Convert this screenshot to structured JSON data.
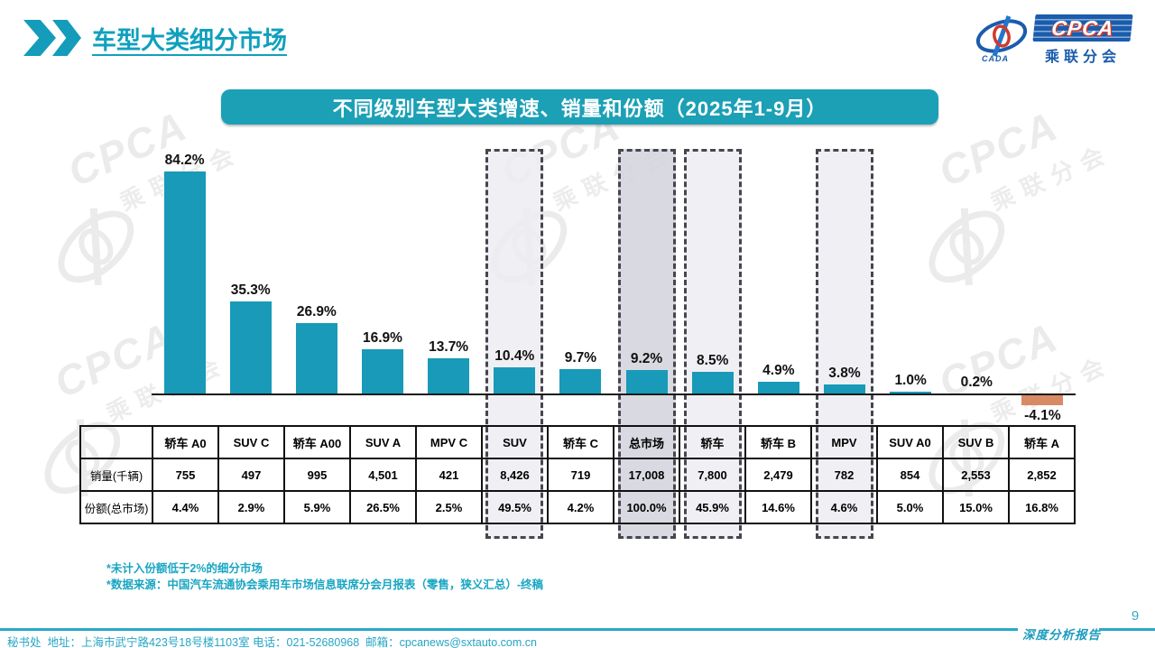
{
  "header": {
    "title": "车型大类细分市场"
  },
  "logo": {
    "cpca": "CPCA",
    "sub": "乘联分会",
    "cada": "CADA"
  },
  "banner": {
    "title": "不同级别车型大类增速、销量和份额（2025年1-9月）"
  },
  "chart_data": {
    "type": "bar",
    "title": "不同级别车型大类增速、销量和份额（2025年1-9月）",
    "categories": [
      "轿车 A0",
      "SUV C",
      "轿车 A00",
      "SUV A",
      "MPV C",
      "SUV",
      "轿车 C",
      "总市场",
      "轿车",
      "轿车 B",
      "MPV",
      "SUV A0",
      "SUV B",
      "轿车 A"
    ],
    "values": [
      84.2,
      35.3,
      26.9,
      16.9,
      13.7,
      10.4,
      9.7,
      9.2,
      8.5,
      4.9,
      3.8,
      1.0,
      0.2,
      -4.1
    ],
    "value_labels": [
      "84.2%",
      "35.3%",
      "26.9%",
      "16.9%",
      "13.7%",
      "10.4%",
      "9.7%",
      "9.2%",
      "8.5%",
      "4.9%",
      "3.8%",
      "1.0%",
      "0.2%",
      "-4.1%"
    ],
    "series": [
      {
        "name": "销量(千辆)",
        "values": [
          "755",
          "497",
          "995",
          "4,501",
          "421",
          "8,426",
          "719",
          "17,008",
          "7,800",
          "2,479",
          "782",
          "854",
          "2,553",
          "2,852"
        ]
      },
      {
        "name": "份额(总市场)",
        "values": [
          "4.4%",
          "2.9%",
          "5.9%",
          "26.5%",
          "2.5%",
          "49.5%",
          "4.2%",
          "100.0%",
          "45.9%",
          "14.6%",
          "4.6%",
          "5.0%",
          "15.0%",
          "16.8%"
        ]
      }
    ],
    "highlighted_columns": [
      5,
      7,
      8,
      10
    ],
    "strong_highlight_columns": [
      7
    ],
    "bar_color": "#189ab8",
    "negative_bar_color": "#d88a65",
    "ylim": [
      -5,
      90
    ],
    "grid": false,
    "legend": "none"
  },
  "table": {
    "row_labels": [
      "销量(千辆)",
      "份额(总市场)"
    ]
  },
  "footnotes": [
    "*未计入份额低于2%的细分市场",
    "*数据来源：中国汽车流通协会乘用车市场信息联席分会月报表（零售，狭义汇总）-终稿"
  ],
  "footer": {
    "address_line": "秘书处  地址：上海市武宁路423号18号楼1103室 电话：021-52680968  邮箱：cpcanews@sxtauto.com.cn",
    "report_label": "深度分析报告",
    "page_number": "9"
  },
  "watermark": {
    "cpca": "CPCA",
    "sub": "乘联分会"
  }
}
